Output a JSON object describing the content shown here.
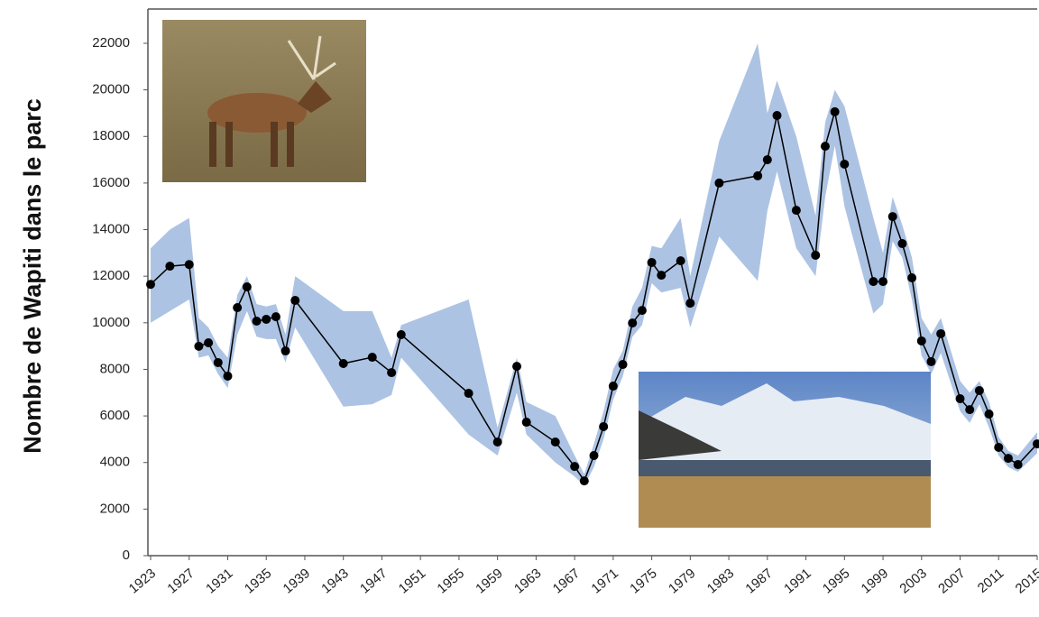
{
  "chart_data": {
    "type": "line",
    "y_label": "Nombre de Wapiti dans le parc",
    "x": [
      1923,
      1925,
      1927,
      1928,
      1929,
      1930,
      1931,
      1932,
      1933,
      1934,
      1935,
      1936,
      1937,
      1938,
      1943,
      1946,
      1948,
      1949,
      1956,
      1959,
      1961,
      1962,
      1965,
      1967,
      1968,
      1969,
      1970,
      1971,
      1972,
      1973,
      1974,
      1975,
      1976,
      1978,
      1979,
      1982,
      1986,
      1987,
      1988,
      1990,
      1992,
      1993,
      1994,
      1995,
      1998,
      1999,
      2000,
      2001,
      2002,
      2003,
      2004,
      2005,
      2007,
      2008,
      2009,
      2010,
      2011,
      2012,
      2013,
      2015
    ],
    "values": [
      11650,
      12430,
      12500,
      8990,
      9140,
      8290,
      7710,
      10650,
      11540,
      10070,
      10150,
      10260,
      8790,
      10960,
      8250,
      8520,
      7860,
      9490,
      6970,
      4880,
      8130,
      5730,
      4880,
      3830,
      3210,
      4300,
      5540,
      7280,
      8210,
      9990,
      10530,
      12590,
      12040,
      12660,
      10840,
      16000,
      16310,
      17000,
      18900,
      14830,
      12900,
      17580,
      19060,
      16810,
      11770,
      11770,
      14560,
      13400,
      11930,
      9220,
      8330,
      9530,
      6740,
      6270,
      7090,
      6080,
      4650,
      4180,
      3910,
      4800
    ],
    "lower": [
      10000,
      10500,
      11000,
      8500,
      8600,
      7800,
      7200,
      9500,
      10500,
      9400,
      9300,
      9300,
      8300,
      9800,
      6400,
      6500,
      6900,
      8500,
      5200,
      4300,
      7000,
      5200,
      4000,
      3400,
      3000,
      3800,
      5000,
      6700,
      7700,
      9400,
      9900,
      11700,
      11300,
      11500,
      9800,
      13700,
      11800,
      14800,
      16500,
      13200,
      12000,
      15400,
      17600,
      15000,
      10400,
      10800,
      13500,
      12800,
      11000,
      8600,
      7800,
      8700,
      6200,
      5700,
      6500,
      5500,
      4300,
      3800,
      3600,
      4400
    ],
    "upper": [
      13200,
      14000,
      14500,
      10200,
      9800,
      9000,
      8500,
      11200,
      12000,
      10800,
      10700,
      10800,
      9500,
      12000,
      10500,
      10500,
      8500,
      9900,
      11000,
      5500,
      8500,
      6600,
      6000,
      4300,
      3500,
      4800,
      6200,
      8000,
      8800,
      10700,
      11500,
      13300,
      13200,
      14500,
      12000,
      17800,
      22000,
      19000,
      20400,
      18000,
      14600,
      18600,
      20000,
      19300,
      14500,
      13000,
      15400,
      14200,
      12800,
      10200,
      9500,
      10200,
      7500,
      7000,
      7500,
      6600,
      5100,
      4500,
      4300,
      5300
    ],
    "color": "#000000",
    "band_color": "#adc3e3",
    "xlim": [
      1923,
      2015
    ],
    "xticks": [
      1923,
      1927,
      1931,
      1935,
      1939,
      1943,
      1947,
      1951,
      1955,
      1959,
      1963,
      1967,
      1971,
      1975,
      1979,
      1983,
      1987,
      1991,
      1995,
      1999,
      2003,
      2007,
      2011,
      2015
    ],
    "ylim": [
      0,
      22000
    ],
    "yticks": [
      0,
      2000,
      4000,
      6000,
      8000,
      10000,
      12000,
      14000,
      16000,
      18000,
      20000,
      22000
    ]
  }
}
